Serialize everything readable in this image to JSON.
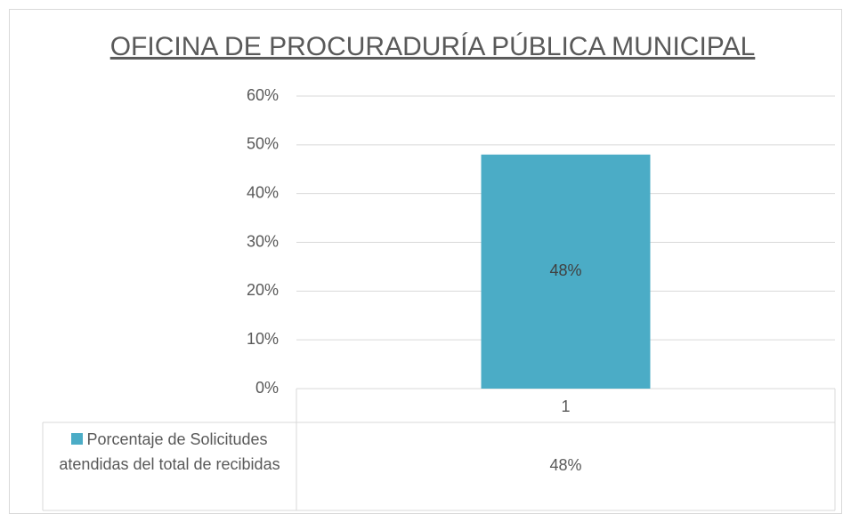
{
  "chart_data": {
    "type": "bar",
    "title": "OFICINA DE PROCURADURÍA PÚBLICA MUNICIPAL",
    "categories": [
      "1"
    ],
    "series": [
      {
        "name": "Porcentaje de Solicitudes atendidas del total de recibidas",
        "color": "#4bacc6",
        "values": [
          48
        ],
        "value_labels": [
          "48%"
        ]
      }
    ],
    "ylim": [
      0,
      60
    ],
    "yticks": [
      {
        "value": 0,
        "label": "0%"
      },
      {
        "value": 10,
        "label": "10%"
      },
      {
        "value": 20,
        "label": "20%"
      },
      {
        "value": 30,
        "label": "30%"
      },
      {
        "value": 40,
        "label": "40%"
      },
      {
        "value": 50,
        "label": "50%"
      },
      {
        "value": 60,
        "label": "60%"
      }
    ],
    "grid": true
  }
}
